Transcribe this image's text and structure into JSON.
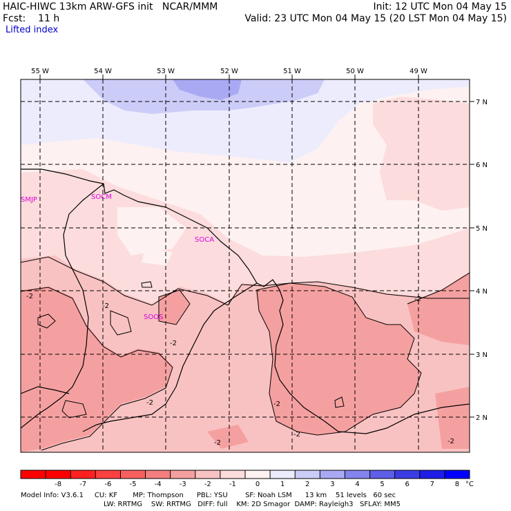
{
  "header": {
    "model_line": "HAIC-HIWC 13km ARW-GFS init   NCAR/MMM",
    "fcst_line": "Fcst:    11 h",
    "init_line": "Init: 12 UTC Mon 04 May 15",
    "valid_line": "Valid: 23 UTC Mon 04 May 15 (20 LST Mon 04 May 15)",
    "field_name": "Lifted index"
  },
  "map": {
    "lon_labels": [
      "55 W",
      "54 W",
      "53 W",
      "52 W",
      "51 W",
      "50 W",
      "49 W"
    ],
    "lat_labels": [
      "7 N",
      "6 N",
      "5 N",
      "4 N",
      "3 N",
      "2 N"
    ],
    "stations": [
      "SMJP",
      "SOCM",
      "SOCA",
      "SOOS"
    ],
    "contour_label": "-2",
    "colors": {
      "c_minus3": "#f5a0a0",
      "c_minus2": "#f9c2c2",
      "c_minus1": "#fcdcdc",
      "c_zero": "#fdf1f1",
      "c_plus1": "#ececfd",
      "c_plus2": "#ccccf8",
      "c_plus3": "#a9a9f3"
    }
  },
  "colorbar": {
    "ticks": [
      "-8",
      "-7",
      "-6",
      "-5",
      "-4",
      "-3",
      "-2",
      "-1",
      "0",
      "1",
      "2",
      "3",
      "4",
      "5",
      "6",
      "7",
      "8"
    ],
    "unit": "°C",
    "colors": [
      "#ff0000",
      "#ff2020",
      "#ff4040",
      "#f86060",
      "#f47e7e",
      "#f5a0a0",
      "#f9c2c2",
      "#fcdcdc",
      "#fdf1f1",
      "#ececfd",
      "#ccccf8",
      "#a9a9f3",
      "#8484ec",
      "#5e5ee8",
      "#3c3ce6",
      "#1e1ee8",
      "#0000ff"
    ]
  },
  "footer": {
    "line1": "Model Info: V3.6.1     CU: KF       MP: Thompson      PBL: YSU        SF: Noah LSM      13 km    51 levels   60 sec",
    "line2": "LW: RRTMG    SW: RRTMG   DIFF: full    KM: 2D Smagor  DAMP: Rayleigh3   SFLAY: MM5"
  }
}
